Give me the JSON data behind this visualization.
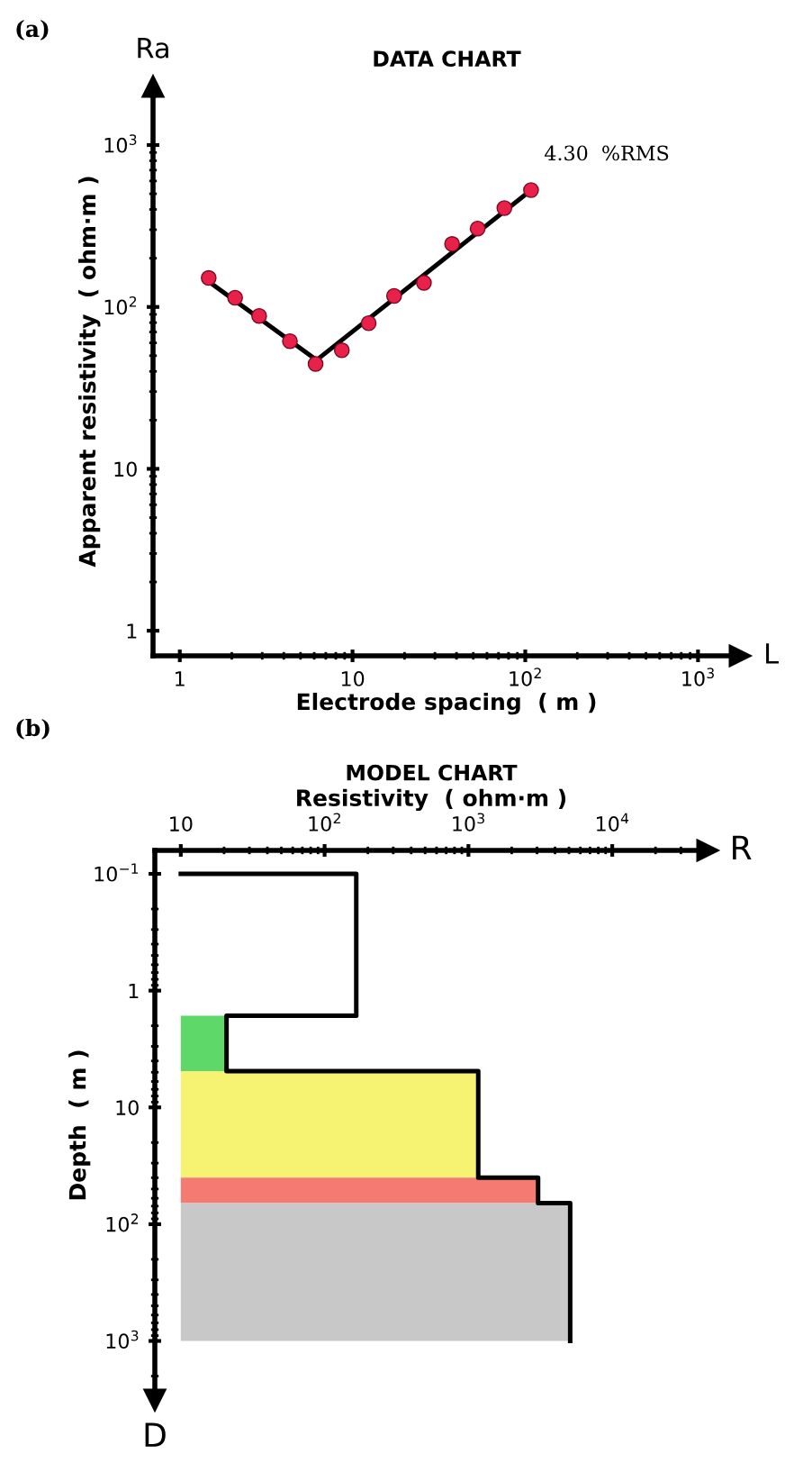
{
  "chart_data": [
    {
      "type": "scatter",
      "title": "DATA CHART",
      "xlabel": "Electrode spacing  ( m )",
      "ylabel": "Apparent resistivity  ( ohm·m )",
      "log": "xy",
      "grid": false,
      "legend": false,
      "xlim": [
        0.7,
        1750
      ],
      "ylim": [
        0.7,
        2300
      ],
      "xticks": [
        1,
        10,
        {
          "value": 100,
          "label": "10$^{2}$"
        },
        {
          "value": 1000,
          "label": "10$^{3}$"
        }
      ],
      "yticks": [
        1,
        10,
        {
          "value": 100,
          "label": "10$^{2}$"
        },
        {
          "value": 1000,
          "label": "10$^{3}$"
        }
      ],
      "annotations": [
        "(a)",
        "4.30  %RMS",
        "Ra",
        "L"
      ],
      "series": [
        {
          "type": "line",
          "color": "#000000",
          "marker": "none",
          "line_style": "solid",
          "x": [
            1.45,
            6.2,
            108
          ],
          "values": [
            145,
            47,
            527
          ]
        },
        {
          "color": "#e8204a",
          "marker": "circle",
          "x": [
            1.47,
            2.09,
            2.88,
            4.34,
            6.11,
            8.67,
            12.4,
            17.4,
            25.9,
            37.7,
            53,
            75.7,
            108
          ],
          "values": [
            151,
            114,
            88,
            61.5,
            44.5,
            54,
            79.4,
            117,
            141,
            245,
            305,
            408,
            527
          ]
        }
      ]
    },
    {
      "type": "area",
      "title": "MODEL CHART",
      "xlabel": "Resistivity  ( ohm·m )",
      "ylabel": "Depth  ( m )",
      "log": "xy",
      "grid": false,
      "legend": false,
      "xlim": [
        6.6,
        46000
      ],
      "ylim": [
        3200,
        0.063
      ],
      "xticks": [
        10,
        {
          "value": 100,
          "label": "10$^{2}$"
        },
        {
          "value": 1000,
          "label": "10$^{3}$"
        },
        {
          "value": 10000,
          "label": "10$^{4}$"
        }
      ],
      "yticks": [
        {
          "value": 0.1,
          "label": "10$^{−1}$"
        },
        1,
        10,
        {
          "value": 100,
          "label": "10$^{2}$"
        },
        {
          "value": 1000,
          "label": "10$^{3}$"
        }
      ],
      "annotations": [
        "(b)",
        "R",
        "D"
      ],
      "series": [
        {
          "color": "#5fd86a",
          "x": [
            10,
            20.8,
            20.8,
            10
          ],
          "values": [
            1.64,
            1.64,
            4.9,
            4.9
          ]
        },
        {
          "color": "#f6f272",
          "x": [
            10,
            1170,
            1170,
            10
          ],
          "values": [
            4.9,
            4.9,
            40,
            40
          ]
        },
        {
          "color": "#f47a72",
          "x": [
            10,
            3050,
            3050,
            10
          ],
          "values": [
            40,
            40,
            66,
            66
          ]
        },
        {
          "color": "#c8c8c8",
          "x": [
            10,
            5100,
            5100,
            10
          ],
          "values": [
            66,
            66,
            1000,
            1000
          ]
        },
        {
          "type": "line",
          "color": "#000000",
          "marker": "none",
          "line_style": "solid",
          "x": [
            10,
            166,
            166,
            20.8,
            20.8,
            1170,
            1170,
            3050,
            3050,
            5100,
            5100
          ],
          "values": [
            0.1,
            0.1,
            1.64,
            1.64,
            4.9,
            4.9,
            40,
            40,
            66,
            66,
            1000
          ]
        }
      ]
    }
  ]
}
